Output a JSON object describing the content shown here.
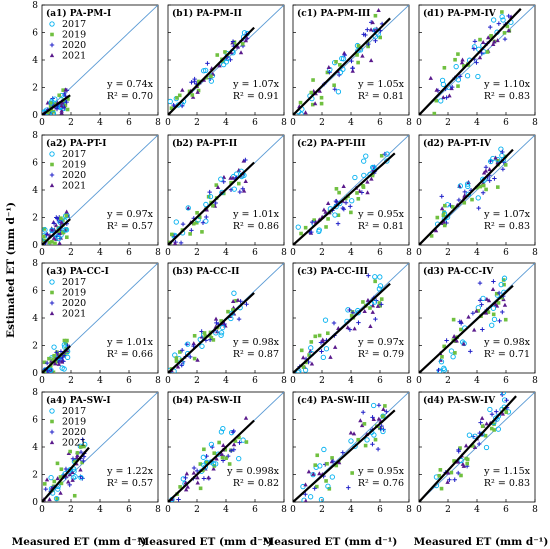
{
  "figure": {
    "ylabel": "Estimated ET (mm d⁻¹)",
    "xlabel": "Measured ET (mm d⁻¹)"
  },
  "legend_years": [
    "2017",
    "2019",
    "2020",
    "2021"
  ],
  "colors": {
    "2017": "#00b0f0",
    "2019": "#70c040",
    "2020": "#2020c8",
    "2021": "#5a1a8c",
    "oneToOne": "#5b9bd5",
    "fit": "#000000"
  },
  "chart_data": {
    "type": "scatter",
    "grid": "4x4",
    "xlim": [
      0,
      8
    ],
    "ylim": [
      0,
      8
    ],
    "ticks": [
      0,
      2,
      4,
      6,
      8
    ],
    "panels": [
      {
        "id": "a1",
        "title": "(a1) PA-PM-I",
        "slope": 0.74,
        "slope_text": "y = 0.74x",
        "r2": 0.7,
        "r2_text": "R² = 0.70",
        "legend": true,
        "range": [
          0.1,
          1.8
        ]
      },
      {
        "id": "b1",
        "title": "(b1) PA-PM-II",
        "slope": 1.07,
        "slope_text": "y = 1.07x",
        "r2": 0.91,
        "r2_text": "R² = 0.91",
        "legend": false,
        "range": [
          0.1,
          5.5
        ]
      },
      {
        "id": "c1",
        "title": "(c1) PA-PM-III",
        "slope": 1.05,
        "slope_text": "y = 1.05x",
        "r2": 0.81,
        "r2_text": "R² = 0.81",
        "legend": false,
        "range": [
          0.3,
          6.2
        ]
      },
      {
        "id": "d1",
        "title": "(d1) PA-PM-IV",
        "slope": 1.1,
        "slope_text": "y = 1.10x",
        "r2": 0.83,
        "r2_text": "R² = 0.83",
        "legend": false,
        "range": [
          0.8,
          6.5
        ]
      },
      {
        "id": "a2",
        "title": "(a2) PA-PT-I",
        "slope": 0.97,
        "slope_text": "y = 0.97x",
        "r2": 0.57,
        "r2_text": "R² = 0.57",
        "legend": true,
        "range": [
          0.1,
          1.8
        ]
      },
      {
        "id": "b2",
        "title": "(b2) PA-PT-II",
        "slope": 1.01,
        "slope_text": "y = 1.01x",
        "r2": 0.86,
        "r2_text": "R² = 0.86",
        "legend": false,
        "range": [
          0.1,
          5.5
        ]
      },
      {
        "id": "c2",
        "title": "(c2) PA-PT-III",
        "slope": 0.95,
        "slope_text": "y = 0.95x",
        "r2": 0.81,
        "r2_text": "R² = 0.81",
        "legend": false,
        "range": [
          0.3,
          6.5
        ]
      },
      {
        "id": "d2",
        "title": "(d2) PA-PT-IV",
        "slope": 1.07,
        "slope_text": "y = 1.07x",
        "r2": 0.83,
        "r2_text": "R² = 0.83",
        "legend": false,
        "range": [
          0.8,
          6.0
        ]
      },
      {
        "id": "a3",
        "title": "(a3) PA-CC-I",
        "slope": 1.01,
        "slope_text": "y = 1.01x",
        "r2": 0.66,
        "r2_text": "R² = 0.66",
        "legend": true,
        "range": [
          0.1,
          1.8
        ]
      },
      {
        "id": "b3",
        "title": "(b3) PA-CC-II",
        "slope": 0.98,
        "slope_text": "y = 0.98x",
        "r2": 0.87,
        "r2_text": "R² = 0.87",
        "legend": false,
        "range": [
          0.1,
          5.5
        ]
      },
      {
        "id": "c3",
        "title": "(c3) PA-CC-III",
        "slope": 0.97,
        "slope_text": "y = 0.97x",
        "r2": 0.79,
        "r2_text": "R² = 0.79",
        "legend": false,
        "range": [
          0.3,
          6.2
        ]
      },
      {
        "id": "d3",
        "title": "(d3) PA-CC-IV",
        "slope": 0.98,
        "slope_text": "y = 0.98x",
        "r2": 0.71,
        "r2_text": "R² = 0.71",
        "legend": false,
        "range": [
          0.8,
          6.0
        ]
      },
      {
        "id": "a4",
        "title": "(a4) PA-SW-I",
        "slope": 1.22,
        "slope_text": "y = 1.22x",
        "r2": 0.57,
        "r2_text": "R² = 0.57",
        "legend": true,
        "range": [
          0.1,
          3.0
        ]
      },
      {
        "id": "b4",
        "title": "(b4) PA-SW-II",
        "slope": 0.998,
        "slope_text": "y = 0.998x",
        "r2": 0.82,
        "r2_text": "R² = 0.82",
        "legend": false,
        "range": [
          0.1,
          5.5
        ]
      },
      {
        "id": "c4",
        "title": "(c4) PA-SW-III",
        "slope": 0.95,
        "slope_text": "y = 0.95x",
        "r2": 0.76,
        "r2_text": "R² = 0.76",
        "legend": false,
        "range": [
          0.3,
          6.5
        ]
      },
      {
        "id": "d4",
        "title": "(d4) PA-SW-IV",
        "slope": 1.15,
        "slope_text": "y = 1.15x",
        "r2": 0.83,
        "r2_text": "R² = 0.83",
        "legend": false,
        "range": [
          0.8,
          6.2
        ]
      }
    ]
  }
}
